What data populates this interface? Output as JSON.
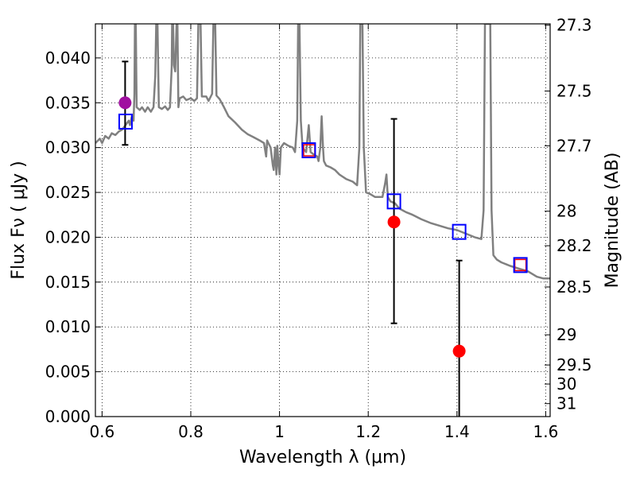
{
  "chart_data": {
    "type": "scatter",
    "title": "",
    "xlabel": "Wavelength  λ (μm)",
    "ylabel": "Flux  Fν  ( μJy )",
    "y2label": "Magnitude (AB)",
    "xlim": [
      0.585,
      1.61
    ],
    "ylim": [
      0.0,
      0.0438
    ],
    "grid": true,
    "grid_style": "dotted",
    "xticks": [
      {
        "value": 0.6,
        "label": "0.6"
      },
      {
        "value": 0.8,
        "label": "0.8"
      },
      {
        "value": 1.0,
        "label": "1"
      },
      {
        "value": 1.2,
        "label": "1.2"
      },
      {
        "value": 1.4,
        "label": "1.4"
      },
      {
        "value": 1.6,
        "label": "1.6"
      }
    ],
    "yticks": [
      {
        "value": 0.0,
        "label": "0.000"
      },
      {
        "value": 0.005,
        "label": "0.005"
      },
      {
        "value": 0.01,
        "label": "0.010"
      },
      {
        "value": 0.015,
        "label": "0.015"
      },
      {
        "value": 0.02,
        "label": "0.020"
      },
      {
        "value": 0.025,
        "label": "0.025"
      },
      {
        "value": 0.03,
        "label": "0.030"
      },
      {
        "value": 0.035,
        "label": "0.035"
      },
      {
        "value": 0.04,
        "label": "0.040"
      }
    ],
    "y2ticks": [
      {
        "mag": 27.3,
        "label": "27.3"
      },
      {
        "mag": 27.5,
        "label": "27.5"
      },
      {
        "mag": 27.7,
        "label": "27.7"
      },
      {
        "mag": 28.0,
        "label": "28"
      },
      {
        "mag": 28.2,
        "label": "28.2"
      },
      {
        "mag": 28.5,
        "label": "28.5"
      },
      {
        "mag": 29.0,
        "label": "29"
      },
      {
        "mag": 29.5,
        "label": "29.5"
      },
      {
        "mag": 30.0,
        "label": "30"
      },
      {
        "mag": 31.0,
        "label": "31"
      }
    ],
    "spectrum": {
      "color": "#808080",
      "points": [
        [
          0.585,
          0.0305
        ],
        [
          0.595,
          0.031
        ],
        [
          0.6,
          0.0305
        ],
        [
          0.607,
          0.0313
        ],
        [
          0.615,
          0.031
        ],
        [
          0.622,
          0.0316
        ],
        [
          0.63,
          0.0314
        ],
        [
          0.638,
          0.0318
        ],
        [
          0.645,
          0.032
        ],
        [
          0.653,
          0.0325
        ],
        [
          0.66,
          0.033
        ],
        [
          0.663,
          0.0325
        ],
        [
          0.667,
          0.0335
        ],
        [
          0.671,
          0.033
        ],
        [
          0.673,
          0.036
        ],
        [
          0.674,
          0.0438
        ],
        [
          0.676,
          0.0438
        ],
        [
          0.678,
          0.0345
        ],
        [
          0.685,
          0.0342
        ],
        [
          0.69,
          0.0345
        ],
        [
          0.697,
          0.034
        ],
        [
          0.703,
          0.0345
        ],
        [
          0.71,
          0.034
        ],
        [
          0.716,
          0.0345
        ],
        [
          0.72,
          0.038
        ],
        [
          0.722,
          0.0438
        ],
        [
          0.725,
          0.0438
        ],
        [
          0.728,
          0.0345
        ],
        [
          0.735,
          0.0343
        ],
        [
          0.742,
          0.0346
        ],
        [
          0.748,
          0.0342
        ],
        [
          0.753,
          0.0345
        ],
        [
          0.757,
          0.039
        ],
        [
          0.758,
          0.0438
        ],
        [
          0.76,
          0.0438
        ],
        [
          0.762,
          0.0392
        ],
        [
          0.765,
          0.0385
        ],
        [
          0.768,
          0.0438
        ],
        [
          0.77,
          0.0438
        ],
        [
          0.772,
          0.0345
        ],
        [
          0.775,
          0.0355
        ],
        [
          0.783,
          0.0357
        ],
        [
          0.79,
          0.0353
        ],
        [
          0.8,
          0.0355
        ],
        [
          0.808,
          0.0352
        ],
        [
          0.814,
          0.0355
        ],
        [
          0.817,
          0.0438
        ],
        [
          0.822,
          0.0438
        ],
        [
          0.825,
          0.0357
        ],
        [
          0.835,
          0.0357
        ],
        [
          0.84,
          0.0352
        ],
        [
          0.848,
          0.036
        ],
        [
          0.851,
          0.0438
        ],
        [
          0.855,
          0.0438
        ],
        [
          0.858,
          0.0358
        ],
        [
          0.865,
          0.0354
        ],
        [
          0.875,
          0.0345
        ],
        [
          0.885,
          0.0335
        ],
        [
          0.9,
          0.0328
        ],
        [
          0.915,
          0.032
        ],
        [
          0.928,
          0.0315
        ],
        [
          0.94,
          0.0312
        ],
        [
          0.955,
          0.0308
        ],
        [
          0.965,
          0.0305
        ],
        [
          0.97,
          0.029
        ],
        [
          0.972,
          0.0308
        ],
        [
          0.975,
          0.0305
        ],
        [
          0.98,
          0.03
        ],
        [
          0.985,
          0.028
        ],
        [
          0.987,
          0.0275
        ],
        [
          0.99,
          0.03
        ],
        [
          0.993,
          0.027
        ],
        [
          0.995,
          0.0302
        ],
        [
          0.998,
          0.028
        ],
        [
          1.0,
          0.027
        ],
        [
          1.003,
          0.03
        ],
        [
          1.01,
          0.0305
        ],
        [
          1.02,
          0.0302
        ],
        [
          1.03,
          0.03
        ],
        [
          1.035,
          0.0295
        ],
        [
          1.04,
          0.033
        ],
        [
          1.042,
          0.0438
        ],
        [
          1.045,
          0.0438
        ],
        [
          1.048,
          0.033
        ],
        [
          1.052,
          0.03
        ],
        [
          1.06,
          0.0295
        ],
        [
          1.066,
          0.0325
        ],
        [
          1.07,
          0.0295
        ],
        [
          1.078,
          0.0292
        ],
        [
          1.085,
          0.029
        ],
        [
          1.088,
          0.0285
        ],
        [
          1.092,
          0.03
        ],
        [
          1.095,
          0.0335
        ],
        [
          1.098,
          0.03
        ],
        [
          1.1,
          0.0285
        ],
        [
          1.105,
          0.028
        ],
        [
          1.115,
          0.0278
        ],
        [
          1.125,
          0.0275
        ],
        [
          1.135,
          0.027
        ],
        [
          1.15,
          0.0265
        ],
        [
          1.165,
          0.0262
        ],
        [
          1.175,
          0.0258
        ],
        [
          1.18,
          0.03
        ],
        [
          1.182,
          0.0438
        ],
        [
          1.187,
          0.0438
        ],
        [
          1.19,
          0.03
        ],
        [
          1.195,
          0.025
        ],
        [
          1.205,
          0.0248
        ],
        [
          1.215,
          0.0245
        ],
        [
          1.225,
          0.0245
        ],
        [
          1.232,
          0.0245
        ],
        [
          1.238,
          0.026
        ],
        [
          1.241,
          0.027
        ],
        [
          1.244,
          0.0245
        ],
        [
          1.25,
          0.024
        ],
        [
          1.26,
          0.0238
        ],
        [
          1.27,
          0.0232
        ],
        [
          1.285,
          0.0228
        ],
        [
          1.3,
          0.0225
        ],
        [
          1.32,
          0.022
        ],
        [
          1.34,
          0.0216
        ],
        [
          1.36,
          0.0213
        ],
        [
          1.38,
          0.021
        ],
        [
          1.4,
          0.0208
        ],
        [
          1.42,
          0.0204
        ],
        [
          1.44,
          0.02
        ],
        [
          1.455,
          0.0198
        ],
        [
          1.46,
          0.023
        ],
        [
          1.463,
          0.0438
        ],
        [
          1.475,
          0.0438
        ],
        [
          1.478,
          0.023
        ],
        [
          1.482,
          0.018
        ],
        [
          1.49,
          0.0175
        ],
        [
          1.5,
          0.0172
        ],
        [
          1.52,
          0.0168
        ],
        [
          1.54,
          0.0165
        ],
        [
          1.56,
          0.0162
        ],
        [
          1.58,
          0.0156
        ],
        [
          1.595,
          0.0154
        ],
        [
          1.61,
          0.0154
        ]
      ]
    },
    "model_points": {
      "marker": "open-square",
      "color": "#0000ff",
      "points": [
        {
          "x": 0.653,
          "y": 0.0329
        },
        {
          "x": 1.066,
          "y": 0.0297
        },
        {
          "x": 1.258,
          "y": 0.024
        },
        {
          "x": 1.405,
          "y": 0.0206
        },
        {
          "x": 1.543,
          "y": 0.0169
        }
      ]
    },
    "filter_points": {
      "marker": "open-square",
      "color": "#ff0000",
      "points": [
        {
          "x": 1.067,
          "y": 0.0297
        },
        {
          "x": 1.543,
          "y": 0.0169
        }
      ]
    },
    "observed_points": [
      {
        "x": 0.652,
        "y": 0.035,
        "yerr_low": 0.0303,
        "yerr_high": 0.0396,
        "color": "#a010a0"
      },
      {
        "x": 1.258,
        "y": 0.0217,
        "yerr_low": 0.0104,
        "yerr_high": 0.0332,
        "color": "#ff0000"
      },
      {
        "x": 1.405,
        "y": 0.0073,
        "yerr_low": 0.0,
        "yerr_high": 0.0174,
        "color": "#ff0000"
      }
    ]
  }
}
